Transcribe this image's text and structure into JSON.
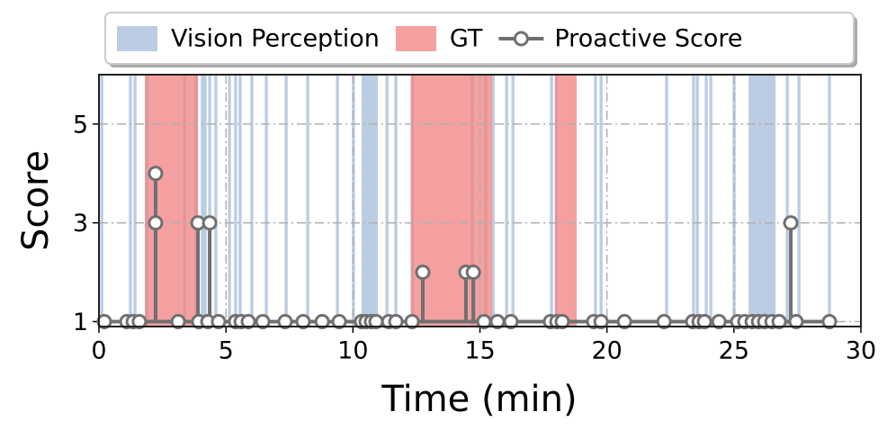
{
  "chart_data": {
    "type": "stem",
    "xlabel": "Time (min)",
    "ylabel": "Score",
    "xlim": [
      0,
      30
    ],
    "ylim": [
      0.9,
      6
    ],
    "xticks": [
      0,
      5,
      10,
      15,
      20,
      25,
      30
    ],
    "yticks": [
      1,
      3,
      5
    ],
    "grid": true,
    "legend": "top",
    "spans": [
      {
        "name": "Vision Perception",
        "color": "#b0c4de",
        "intervals": [
          [
            0.05,
            0.17
          ],
          [
            1.18,
            1.3
          ],
          [
            1.36,
            1.48
          ],
          [
            1.82,
            1.94
          ],
          [
            3.31,
            3.43
          ],
          [
            3.77,
            3.89
          ],
          [
            4.01,
            4.13
          ],
          [
            4.12,
            4.24
          ],
          [
            4.3,
            4.42
          ],
          [
            4.54,
            4.66
          ],
          [
            5.08,
            5.2
          ],
          [
            5.32,
            5.44
          ],
          [
            5.5,
            5.62
          ],
          [
            5.96,
            6.08
          ],
          [
            6.53,
            6.65
          ],
          [
            7.31,
            7.43
          ],
          [
            8.16,
            8.28
          ],
          [
            9.33,
            9.45
          ],
          [
            9.96,
            10.08
          ],
          [
            10.34,
            10.98
          ],
          [
            11.28,
            11.4
          ],
          [
            11.63,
            11.75
          ],
          [
            12.27,
            12.39
          ],
          [
            14.64,
            14.76
          ],
          [
            15.17,
            15.29
          ],
          [
            15.46,
            15.58
          ],
          [
            15.99,
            16.11
          ],
          [
            16.24,
            16.36
          ],
          [
            17.76,
            17.88
          ],
          [
            17.94,
            18.06
          ],
          [
            19.49,
            19.61
          ],
          [
            19.71,
            19.83
          ],
          [
            22.29,
            22.41
          ],
          [
            23.35,
            23.47
          ],
          [
            23.5,
            23.62
          ],
          [
            23.85,
            23.97
          ],
          [
            24.03,
            24.15
          ],
          [
            24.95,
            25.07
          ],
          [
            25.58,
            26.64
          ],
          [
            27.04,
            27.16
          ],
          [
            27.5,
            27.62
          ],
          [
            28.7,
            28.82
          ]
        ]
      },
      {
        "name": "GT",
        "color": "#f08080",
        "intervals": [
          [
            1.81,
            3.9
          ],
          [
            12.29,
            15.48
          ],
          [
            17.96,
            18.81
          ]
        ]
      }
    ],
    "series": [
      {
        "name": "Proactive Score",
        "color": "#707070",
        "x": [
          0.21,
          1.1,
          1.35,
          1.59,
          2.23,
          2.23,
          3.12,
          3.9,
          3.93,
          4.29,
          4.36,
          4.71,
          5.38,
          5.6,
          5.88,
          6.45,
          7.33,
          8.04,
          8.79,
          9.46,
          10.34,
          10.52,
          10.73,
          10.91,
          11.41,
          11.69,
          12.33,
          12.75,
          14.45,
          14.74,
          15.16,
          15.69,
          16.22,
          17.78,
          18.03,
          18.24,
          19.48,
          19.77,
          20.69,
          22.25,
          23.38,
          23.63,
          23.84,
          24.41,
          25.15,
          25.43,
          25.72,
          25.97,
          26.21,
          26.5,
          26.78,
          27.24,
          27.45,
          28.76
        ],
        "values": [
          1,
          1,
          1,
          1,
          4,
          3,
          1,
          3,
          1,
          1,
          3,
          1,
          1,
          1,
          1,
          1,
          1,
          1,
          1,
          1,
          1,
          1,
          1,
          1,
          1,
          1,
          1,
          2,
          2,
          2,
          1,
          1,
          1,
          1,
          1,
          1,
          1,
          1,
          1,
          1,
          1,
          1,
          1,
          1,
          1,
          1,
          1,
          1,
          1,
          1,
          1,
          3,
          1,
          1
        ]
      }
    ]
  }
}
